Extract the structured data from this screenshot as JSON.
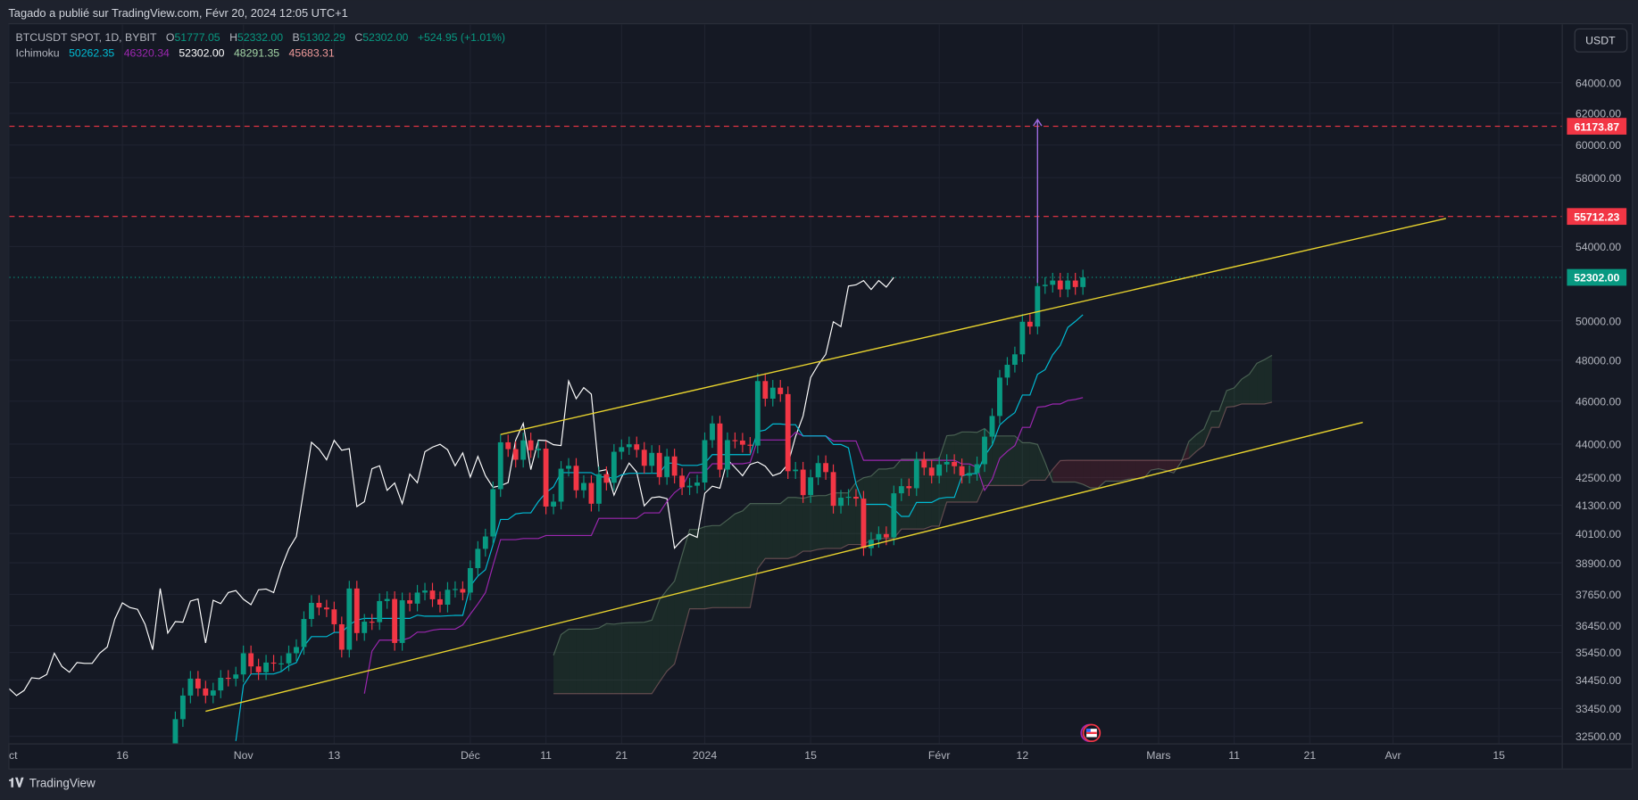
{
  "header": {
    "published_text": "Tagado a publié sur TradingView.com, Févr 20, 2024 12:05 UTC+1"
  },
  "legend": {
    "symbol": "BTCUSDT SPOT, 1D, BYBIT",
    "o_label": "O",
    "o": "51777.05",
    "h_label": "H",
    "h": "52332.00",
    "l_label": "B",
    "l": "51302.29",
    "c_label": "C",
    "c": "52302.00",
    "change": "+524.95 (+1.01%)",
    "indicator": "Ichimoku",
    "tenkan": "50262.35",
    "kijun": "46320.34",
    "chikou": "52302.00",
    "senkou_a": "48291.35",
    "senkou_b": "45683.31"
  },
  "currency_button": "USDT",
  "price_axis": {
    "scale": "log",
    "ticks": [
      "64000.00",
      "62000.00",
      "60000.00",
      "58000.00",
      "54000.00",
      "50000.00",
      "48000.00",
      "46000.00",
      "44000.00",
      "42500.00",
      "41300.00",
      "40100.00",
      "38900.00",
      "37650.00",
      "36450.00",
      "35450.00",
      "34450.00",
      "33450.00",
      "32500.00"
    ],
    "hidden_ticks": [
      "66000.00",
      "56000.00",
      "52000.00"
    ]
  },
  "price_labels": [
    {
      "name": "resistance-high",
      "value": "61173.87",
      "color": "#f23645"
    },
    {
      "name": "resistance-low",
      "value": "55712.23",
      "color": "#f23645"
    },
    {
      "name": "last-price",
      "value": "52302.00",
      "color": "#089981"
    }
  ],
  "time_axis": [
    {
      "label": "Oct",
      "date": "2023-10-01"
    },
    {
      "label": "16",
      "date": "2023-10-16"
    },
    {
      "label": "Nov",
      "date": "2023-11-01"
    },
    {
      "label": "13",
      "date": "2023-11-13"
    },
    {
      "label": "Déc",
      "date": "2023-12-01"
    },
    {
      "label": "11",
      "date": "2023-12-11"
    },
    {
      "label": "21",
      "date": "2023-12-21"
    },
    {
      "label": "2024",
      "date": "2024-01-01"
    },
    {
      "label": "15",
      "date": "2024-01-15"
    },
    {
      "label": "Févr",
      "date": "2024-02-01"
    },
    {
      "label": "12",
      "date": "2024-02-12"
    },
    {
      "label": "Mars",
      "date": "2024-03-01"
    },
    {
      "label": "11",
      "date": "2024-03-11"
    },
    {
      "label": "21",
      "date": "2024-03-21"
    },
    {
      "label": "Avr",
      "date": "2024-04-01"
    },
    {
      "label": "15",
      "date": "2024-04-15"
    }
  ],
  "colors": {
    "up": "#089981",
    "down": "#f23645",
    "tenkan": "#00bcd4",
    "kijun": "#9c27b0",
    "chikou": "#ffffff",
    "senkou_a": "#a5d6a7",
    "senkou_b": "#ef9a9a",
    "channel": "#e8d32e",
    "arrow": "#9c6ade"
  },
  "chart_data": {
    "type": "candlestick",
    "interval": "1D",
    "first_date": "2023-10-23",
    "first_open": 29990,
    "closes": [
      33080,
      33900,
      34500,
      34150,
      33900,
      34080,
      34530,
      34500,
      34650,
      35420,
      34940,
      34730,
      35080,
      35050,
      35050,
      35420,
      35650,
      36700,
      37320,
      37140,
      37070,
      36500,
      35550,
      37880,
      36170,
      36600,
      36580,
      37390,
      37470,
      35800,
      37420,
      37290,
      37720,
      37800,
      37460,
      37250,
      37830,
      37860,
      37720,
      38690,
      39470,
      39980,
      41990,
      44080,
      43770,
      43290,
      44170,
      43720,
      43790,
      41240,
      41450,
      42890,
      43020,
      41940,
      42260,
      41360,
      42650,
      42270,
      43650,
      43860,
      43990,
      43740,
      43020,
      43600,
      42520,
      43440,
      42580,
      42070,
      42140,
      42280,
      44180,
      44950,
      42850,
      44180,
      44160,
      43970,
      43930,
      46970,
      46120,
      46650,
      46340,
      42780,
      42850,
      41730,
      42510,
      43140,
      42740,
      41270,
      41620,
      41660,
      41580,
      39500,
      39840,
      40080,
      39940,
      41810,
      42120,
      42030,
      43300,
      42940,
      42580,
      43080,
      43190,
      43000,
      42580,
      42700,
      43090,
      44340,
      45300,
      47140,
      47770,
      48290,
      49950,
      49700,
      51830,
      51900,
      52130,
      51650,
      52130,
      51780,
      52302
    ],
    "drawings": {
      "channel_upper": [
        [
          "2023-12-05",
          44440
        ],
        [
          "2024-04-08",
          55600
        ]
      ],
      "channel_lower": [
        [
          "2023-10-27",
          33350
        ],
        [
          "2024-03-28",
          45000
        ]
      ],
      "arrow": [
        [
          "2024-02-14",
          52000
        ],
        [
          "2024-02-14",
          61600
        ]
      ],
      "horizontal_lines": [
        61173.87,
        55712.23
      ]
    }
  },
  "footer": {
    "brand": "TradingView"
  }
}
